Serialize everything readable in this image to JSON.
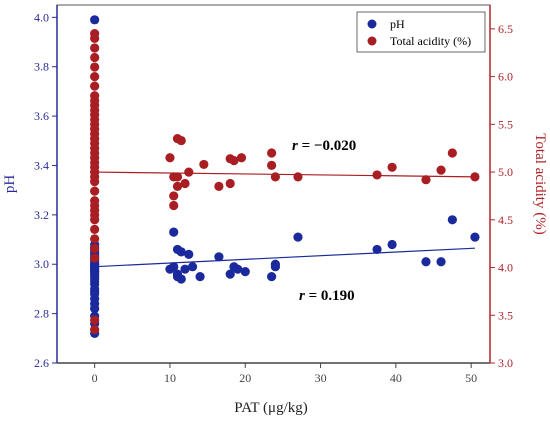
{
  "chart_data": {
    "type": "scatter",
    "xlabel": "PAT (μg/kg)",
    "ylabel_left": "pH",
    "ylabel_right": "Total acidity (%)",
    "xlim": [
      -5,
      52.5
    ],
    "ylim_left": [
      2.6,
      4.05
    ],
    "ylim_right": [
      3.0,
      6.75
    ],
    "x_ticks": [
      "0",
      "10",
      "20",
      "30",
      "40",
      "50"
    ],
    "y_left_ticks": [
      "2.6",
      "2.8",
      "3.0",
      "3.2",
      "3.4",
      "3.6",
      "3.8",
      "4.0"
    ],
    "y_right_ticks": [
      "3.0",
      "3.5",
      "4.0",
      "4.5",
      "5.0",
      "5.5",
      "6.0",
      "6.5"
    ],
    "legend_position": "top-right",
    "colors": {
      "ph": "#1a2a9c",
      "acidity": "#a81e23",
      "left_axis": "#2a2a9a",
      "right_axis": "#b0252a"
    },
    "series": [
      {
        "name": "pH",
        "axis": "left",
        "x": [
          0,
          0,
          0,
          0,
          0,
          0,
          0,
          0,
          0,
          0,
          0,
          0,
          0,
          0,
          0,
          0,
          0,
          0,
          0,
          0,
          0,
          0,
          0,
          0,
          0,
          0,
          0,
          0,
          0,
          0,
          10,
          10.5,
          10.5,
          11,
          11,
          11,
          11.5,
          11.5,
          12,
          12.5,
          13,
          14,
          16.5,
          18,
          18.5,
          19,
          20,
          23.5,
          24,
          24,
          27,
          37.5,
          39.5,
          44,
          46,
          47.5,
          50.5
        ],
        "y": [
          2.72,
          2.76,
          2.79,
          2.82,
          2.84,
          2.86,
          2.88,
          2.89,
          2.9,
          2.92,
          2.93,
          2.94,
          2.95,
          2.96,
          2.97,
          2.98,
          2.99,
          3.0,
          3.01,
          3.02,
          3.03,
          3.04,
          3.05,
          3.06,
          3.07,
          3.08,
          3.99,
          3.0,
          2.97,
          2.99,
          2.98,
          3.13,
          2.99,
          3.06,
          2.96,
          2.95,
          3.05,
          2.94,
          2.98,
          3.04,
          2.99,
          2.95,
          3.03,
          2.96,
          2.99,
          2.98,
          2.97,
          2.95,
          3.0,
          2.99,
          3.11,
          3.06,
          3.08,
          3.01,
          3.01,
          3.18,
          3.11
        ]
      },
      {
        "name": "Total acidity (%)",
        "axis": "right",
        "x": [
          0,
          0,
          0,
          0,
          0,
          0,
          0,
          0,
          0,
          0,
          0,
          0,
          0,
          0,
          0,
          0,
          0,
          0,
          0,
          0,
          0,
          0,
          0,
          0,
          0,
          0,
          0,
          0,
          0,
          0,
          0,
          0,
          0,
          0,
          0,
          0,
          0,
          0,
          10,
          10.5,
          10.5,
          10.5,
          11,
          11,
          11,
          11.5,
          12,
          12.5,
          14.5,
          16.5,
          18,
          18,
          18.5,
          19.5,
          23.5,
          23.5,
          24,
          27,
          37.5,
          39.5,
          44,
          46,
          47.5,
          50.5
        ],
        "y": [
          3.35,
          3.45,
          4.1,
          4.2,
          4.3,
          4.4,
          4.5,
          4.6,
          4.7,
          4.8,
          4.9,
          5.0,
          5.05,
          5.1,
          5.15,
          5.2,
          5.25,
          5.3,
          5.35,
          5.4,
          5.45,
          5.5,
          5.6,
          5.7,
          5.8,
          5.9,
          6.0,
          6.1,
          6.2,
          6.3,
          6.4,
          6.45,
          5.55,
          5.65,
          5.75,
          4.55,
          4.65,
          4.95,
          5.15,
          4.65,
          4.75,
          4.95,
          5.35,
          4.85,
          4.95,
          5.33,
          4.88,
          5.0,
          5.08,
          4.85,
          4.88,
          5.14,
          5.12,
          5.15,
          5.07,
          5.2,
          4.95,
          4.95,
          4.97,
          5.05,
          4.92,
          5.02,
          5.2,
          4.95
        ]
      }
    ],
    "fit_lines": [
      {
        "series": "pH",
        "x": [
          0,
          50.5
        ],
        "y": [
          2.99,
          3.065
        ]
      },
      {
        "series": "Total acidity (%)",
        "x": [
          0,
          50.5
        ],
        "y": [
          5.0,
          4.95
        ]
      }
    ],
    "annotations": [
      {
        "r_label": "r",
        "value": " = −0.020",
        "near": "Total acidity (%)"
      },
      {
        "r_label": "r",
        "value": " = 0.190",
        "near": "pH"
      }
    ]
  }
}
